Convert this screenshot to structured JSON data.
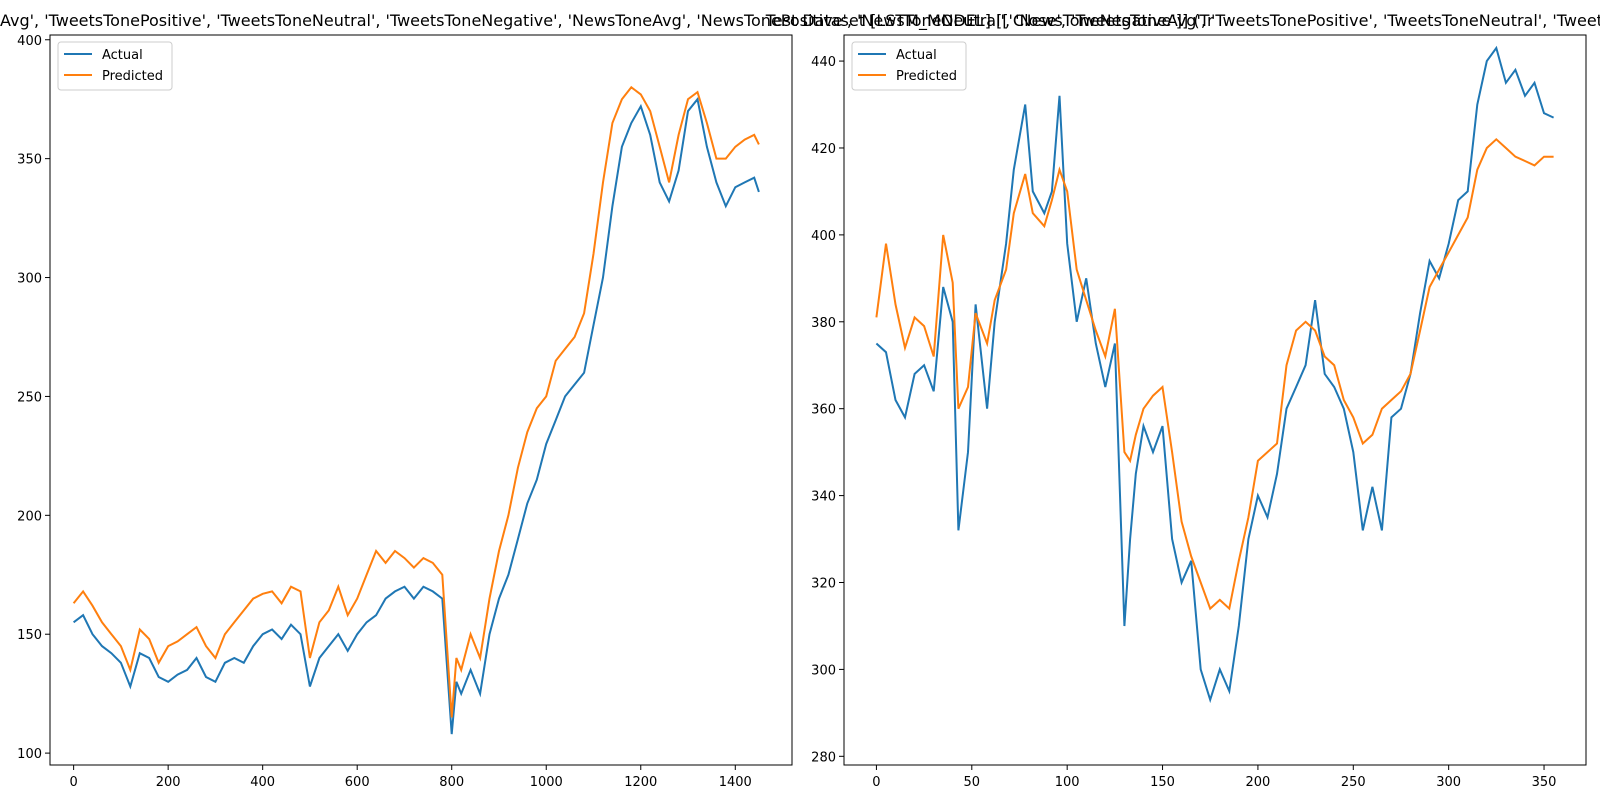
{
  "colors": {
    "actual": "#1f77b4",
    "predicted": "#ff7f0e"
  },
  "chart_data": [
    {
      "type": "line",
      "title": "Avg', 'TweetsTonePositive', 'TweetsToneNeutral', 'TweetsToneNegative', 'NewsToneAvg', 'NewsTonePositive', 'NewsToneNeutral', 'NewsToneNegative']] (Tr",
      "xlim": [
        -50,
        1520
      ],
      "ylim": [
        95,
        402
      ],
      "xticks": [
        0,
        200,
        400,
        600,
        800,
        1000,
        1200,
        1400
      ],
      "yticks": [
        100,
        150,
        200,
        250,
        300,
        350,
        400
      ],
      "legend": "top-left",
      "grid": false,
      "series": [
        {
          "name": "Actual",
          "x": [
            0,
            20,
            40,
            60,
            80,
            100,
            120,
            140,
            160,
            180,
            200,
            220,
            240,
            260,
            280,
            300,
            320,
            340,
            360,
            380,
            400,
            420,
            440,
            460,
            480,
            500,
            520,
            540,
            560,
            580,
            600,
            620,
            640,
            660,
            680,
            700,
            720,
            740,
            760,
            780,
            800,
            810,
            820,
            840,
            860,
            880,
            900,
            920,
            940,
            960,
            980,
            1000,
            1020,
            1040,
            1060,
            1080,
            1100,
            1120,
            1140,
            1160,
            1180,
            1200,
            1220,
            1240,
            1260,
            1280,
            1300,
            1320,
            1340,
            1360,
            1380,
            1400,
            1420,
            1440,
            1450
          ],
          "y": [
            155,
            158,
            150,
            145,
            142,
            138,
            128,
            142,
            140,
            132,
            130,
            133,
            135,
            140,
            132,
            130,
            138,
            140,
            138,
            145,
            150,
            152,
            148,
            154,
            150,
            128,
            140,
            145,
            150,
            143,
            150,
            155,
            158,
            165,
            168,
            170,
            165,
            170,
            168,
            165,
            108,
            130,
            125,
            135,
            125,
            150,
            165,
            175,
            190,
            205,
            215,
            230,
            240,
            250,
            255,
            260,
            280,
            300,
            330,
            355,
            365,
            372,
            360,
            340,
            332,
            345,
            370,
            375,
            355,
            340,
            330,
            338,
            340,
            342,
            336
          ]
        },
        {
          "name": "Predicted",
          "x": [
            0,
            20,
            40,
            60,
            80,
            100,
            120,
            140,
            160,
            180,
            200,
            220,
            240,
            260,
            280,
            300,
            320,
            340,
            360,
            380,
            400,
            420,
            440,
            460,
            480,
            500,
            520,
            540,
            560,
            580,
            600,
            620,
            640,
            660,
            680,
            700,
            720,
            740,
            760,
            780,
            800,
            810,
            820,
            840,
            860,
            880,
            900,
            920,
            940,
            960,
            980,
            1000,
            1020,
            1040,
            1060,
            1080,
            1100,
            1120,
            1140,
            1160,
            1180,
            1200,
            1220,
            1240,
            1260,
            1280,
            1300,
            1320,
            1340,
            1360,
            1380,
            1400,
            1420,
            1440,
            1450
          ],
          "y": [
            163,
            168,
            162,
            155,
            150,
            145,
            135,
            152,
            148,
            138,
            145,
            147,
            150,
            153,
            145,
            140,
            150,
            155,
            160,
            165,
            167,
            168,
            163,
            170,
            168,
            140,
            155,
            160,
            170,
            158,
            165,
            175,
            185,
            180,
            185,
            182,
            178,
            182,
            180,
            175,
            115,
            140,
            135,
            150,
            140,
            165,
            185,
            200,
            220,
            235,
            245,
            250,
            265,
            270,
            275,
            285,
            310,
            340,
            365,
            375,
            380,
            377,
            370,
            355,
            340,
            360,
            375,
            378,
            365,
            350,
            350,
            355,
            358,
            360,
            356
          ]
        }
      ]
    },
    {
      "type": "line",
      "title": "Test Dataset [LSTM_MODEL] [['Close', 'TweetsToneAvg', 'TweetsTonePositive', 'TweetsToneNeutral', 'TweetsToneNegative']] [TE]",
      "xlim": [
        -17,
        372
      ],
      "ylim": [
        278,
        446
      ],
      "xticks": [
        0,
        50,
        100,
        150,
        200,
        250,
        300,
        350
      ],
      "yticks": [
        280,
        300,
        320,
        340,
        360,
        380,
        400,
        420,
        440
      ],
      "legend": "top-left",
      "grid": false,
      "series": [
        {
          "name": "Actual",
          "x": [
            0,
            5,
            10,
            15,
            20,
            25,
            30,
            35,
            40,
            43,
            48,
            52,
            58,
            62,
            68,
            72,
            78,
            82,
            88,
            92,
            96,
            100,
            105,
            110,
            115,
            120,
            125,
            130,
            133,
            136,
            140,
            145,
            150,
            155,
            160,
            165,
            170,
            175,
            180,
            185,
            190,
            195,
            200,
            205,
            210,
            215,
            220,
            225,
            230,
            235,
            240,
            245,
            250,
            255,
            260,
            265,
            270,
            275,
            280,
            285,
            290,
            295,
            300,
            305,
            310,
            315,
            320,
            325,
            330,
            335,
            340,
            345,
            350,
            355
          ],
          "y": [
            375,
            373,
            362,
            358,
            368,
            370,
            364,
            388,
            380,
            332,
            350,
            384,
            360,
            380,
            398,
            415,
            430,
            410,
            405,
            410,
            432,
            398,
            380,
            390,
            375,
            365,
            375,
            310,
            330,
            345,
            356,
            350,
            356,
            330,
            320,
            325,
            300,
            293,
            300,
            295,
            310,
            330,
            340,
            335,
            345,
            360,
            365,
            370,
            385,
            368,
            365,
            360,
            350,
            332,
            342,
            332,
            358,
            360,
            368,
            382,
            394,
            390,
            398,
            408,
            410,
            430,
            440,
            443,
            435,
            438,
            432,
            435,
            428,
            427
          ]
        },
        {
          "name": "Predicted",
          "x": [
            0,
            5,
            10,
            15,
            20,
            25,
            30,
            35,
            40,
            43,
            48,
            52,
            58,
            62,
            68,
            72,
            78,
            82,
            88,
            92,
            96,
            100,
            105,
            110,
            115,
            120,
            125,
            130,
            133,
            136,
            140,
            145,
            150,
            155,
            160,
            165,
            170,
            175,
            180,
            185,
            190,
            195,
            200,
            205,
            210,
            215,
            220,
            225,
            230,
            235,
            240,
            245,
            250,
            255,
            260,
            265,
            270,
            275,
            280,
            285,
            290,
            295,
            300,
            305,
            310,
            315,
            320,
            325,
            330,
            335,
            340,
            345,
            350,
            355
          ],
          "y": [
            381,
            398,
            384,
            374,
            381,
            379,
            372,
            400,
            389,
            360,
            365,
            382,
            375,
            385,
            392,
            405,
            414,
            405,
            402,
            408,
            415,
            410,
            392,
            385,
            378,
            372,
            383,
            350,
            348,
            354,
            360,
            363,
            365,
            350,
            334,
            326,
            320,
            314,
            316,
            314,
            325,
            335,
            348,
            350,
            352,
            370,
            378,
            380,
            378,
            372,
            370,
            362,
            358,
            352,
            354,
            360,
            362,
            364,
            368,
            378,
            388,
            392,
            396,
            400,
            404,
            415,
            420,
            422,
            420,
            418,
            417,
            416,
            418,
            418
          ]
        }
      ]
    }
  ]
}
